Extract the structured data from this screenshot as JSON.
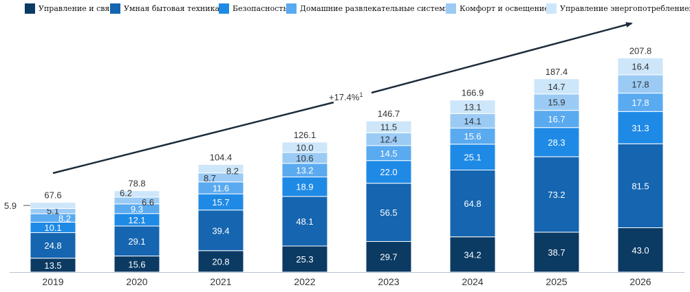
{
  "chart_data": {
    "type": "bar",
    "stacked": true,
    "categories": [
      "2019",
      "2020",
      "2021",
      "2022",
      "2023",
      "2024",
      "2025",
      "2026"
    ],
    "series": [
      {
        "name": "Управление и связь",
        "color": "#0b3a63",
        "values": [
          13.5,
          15.6,
          20.8,
          25.3,
          29.7,
          34.2,
          38.7,
          43.0
        ]
      },
      {
        "name": "Умная бытовая техника",
        "color": "#1565b0",
        "values": [
          24.8,
          29.1,
          39.4,
          48.1,
          56.5,
          64.8,
          73.2,
          81.5
        ]
      },
      {
        "name": "Безопасность",
        "color": "#1f8ae6",
        "values": [
          10.1,
          12.1,
          15.7,
          18.9,
          22.0,
          25.1,
          28.3,
          31.3
        ]
      },
      {
        "name": "Домашние развлекательные системы",
        "color": "#5aaaf0",
        "values": [
          8.2,
          9.3,
          11.6,
          13.2,
          14.5,
          15.6,
          16.7,
          17.8
        ]
      },
      {
        "name": "Комфорт и освещение",
        "color": "#9bcbf5",
        "values": [
          5.1,
          6.6,
          8.7,
          10.6,
          12.4,
          14.1,
          15.9,
          17.8
        ]
      },
      {
        "name": "Управление энергопотреблением",
        "color": "#cde6fa",
        "values": [
          5.9,
          6.2,
          8.2,
          10.0,
          11.5,
          13.1,
          14.7,
          16.4
        ]
      }
    ],
    "totals": [
      "67.6",
      "78.8",
      "104.4",
      "126.1",
      "146.7",
      "166.9",
      "187.4",
      "207.8"
    ],
    "annotation": {
      "text": "+17.4%",
      "superscript": "1"
    },
    "legend_position": "top",
    "grid": false
  }
}
